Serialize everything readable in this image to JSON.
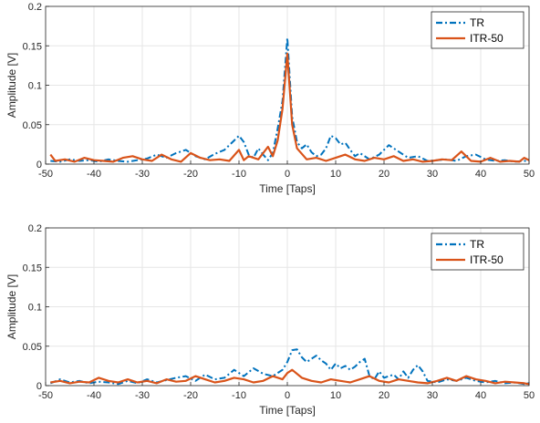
{
  "chart_data": [
    {
      "type": "line",
      "xlabel": "Time [Taps]",
      "ylabel": "Amplitude [V]",
      "xlim": [
        -50,
        50
      ],
      "ylim": [
        0,
        0.2
      ],
      "xticks": [
        "-50",
        "-40",
        "-30",
        "-20",
        "-10",
        "0",
        "10",
        "20",
        "30",
        "40",
        "50"
      ],
      "yticks": [
        "0",
        "0.05",
        "0.1",
        "0.15",
        "0.2"
      ],
      "grid": true,
      "legend_position": "top-right",
      "series": [
        {
          "name": "TR",
          "color": "#0072BD",
          "style": "dash-dot",
          "x": [
            -49,
            -47,
            -45,
            -43,
            -41,
            -39,
            -37,
            -35,
            -33,
            -31,
            -29,
            -27,
            -25,
            -23,
            -21,
            -19,
            -17,
            -15,
            -13,
            -12,
            -11,
            -10,
            -9,
            -8,
            -7,
            -6,
            -5,
            -4,
            -3,
            -2,
            -1,
            0,
            1,
            2,
            3,
            4,
            5,
            6,
            7,
            8,
            9,
            10,
            11,
            12,
            13,
            14,
            15,
            17,
            19,
            21,
            23,
            25,
            27,
            29,
            31,
            33,
            35,
            37,
            39,
            41,
            43,
            45,
            47,
            49,
            50
          ],
          "y": [
            0.004,
            0.003,
            0.006,
            0.004,
            0.005,
            0.003,
            0.006,
            0.004,
            0.003,
            0.005,
            0.007,
            0.012,
            0.008,
            0.014,
            0.018,
            0.01,
            0.006,
            0.013,
            0.018,
            0.024,
            0.03,
            0.036,
            0.028,
            0.012,
            0.008,
            0.02,
            0.012,
            0.005,
            0.014,
            0.045,
            0.08,
            0.16,
            0.06,
            0.028,
            0.02,
            0.025,
            0.015,
            0.01,
            0.012,
            0.02,
            0.036,
            0.033,
            0.025,
            0.027,
            0.018,
            0.01,
            0.014,
            0.006,
            0.012,
            0.024,
            0.016,
            0.008,
            0.01,
            0.004,
            0.005,
            0.006,
            0.004,
            0.01,
            0.012,
            0.006,
            0.004,
            0.005,
            0.003,
            0.004,
            0.004
          ]
        },
        {
          "name": "ITR-50",
          "color": "#D95319",
          "style": "solid",
          "x": [
            -49,
            -48,
            -46,
            -44,
            -42,
            -40,
            -38,
            -36,
            -34,
            -32,
            -30,
            -28,
            -26,
            -24,
            -22,
            -20,
            -18,
            -16,
            -14,
            -12,
            -10,
            -9,
            -8,
            -6,
            -4,
            -3,
            -2,
            -1,
            0,
            1,
            2,
            4,
            6,
            8,
            10,
            12,
            14,
            16,
            18,
            20,
            22,
            24,
            26,
            28,
            30,
            32,
            34,
            36,
            38,
            40,
            42,
            44,
            46,
            48,
            49,
            50
          ],
          "y": [
            0.012,
            0.004,
            0.006,
            0.003,
            0.008,
            0.005,
            0.004,
            0.003,
            0.008,
            0.01,
            0.006,
            0.004,
            0.012,
            0.006,
            0.003,
            0.014,
            0.008,
            0.005,
            0.006,
            0.004,
            0.018,
            0.005,
            0.01,
            0.006,
            0.022,
            0.01,
            0.03,
            0.07,
            0.14,
            0.05,
            0.02,
            0.006,
            0.008,
            0.004,
            0.008,
            0.012,
            0.006,
            0.004,
            0.008,
            0.006,
            0.01,
            0.004,
            0.006,
            0.003,
            0.004,
            0.006,
            0.005,
            0.016,
            0.004,
            0.003,
            0.008,
            0.003,
            0.004,
            0.003,
            0.008,
            0.005
          ]
        }
      ]
    },
    {
      "type": "line",
      "xlabel": "Time [Taps]",
      "ylabel": "Amplitude [V]",
      "xlim": [
        -50,
        50
      ],
      "ylim": [
        0,
        0.2
      ],
      "xticks": [
        "-50",
        "-40",
        "-30",
        "-20",
        "-10",
        "0",
        "10",
        "20",
        "30",
        "40",
        "50"
      ],
      "yticks": [
        "0",
        "0.05",
        "0.1",
        "0.15",
        "0.2"
      ],
      "grid": true,
      "legend_position": "top-right",
      "series": [
        {
          "name": "TR",
          "color": "#0072BD",
          "style": "dash-dot",
          "x": [
            -49,
            -47,
            -45,
            -43,
            -41,
            -39,
            -37,
            -35,
            -33,
            -31,
            -29,
            -27,
            -25,
            -23,
            -21,
            -19,
            -17,
            -15,
            -13,
            -11,
            -9,
            -7,
            -5,
            -3,
            -1,
            0,
            1,
            2,
            3,
            4,
            5,
            6,
            7,
            8,
            9,
            10,
            11,
            12,
            13,
            14,
            15,
            16,
            17,
            18,
            19,
            20,
            21,
            22,
            23,
            24,
            25,
            26,
            27,
            28,
            29,
            31,
            33,
            35,
            37,
            39,
            41,
            43,
            45,
            47,
            49,
            50
          ],
          "y": [
            0.003,
            0.008,
            0.004,
            0.006,
            0.003,
            0.005,
            0.004,
            0.002,
            0.006,
            0.003,
            0.008,
            0.004,
            0.007,
            0.01,
            0.012,
            0.006,
            0.014,
            0.008,
            0.01,
            0.02,
            0.012,
            0.022,
            0.015,
            0.012,
            0.02,
            0.03,
            0.045,
            0.046,
            0.036,
            0.03,
            0.034,
            0.038,
            0.032,
            0.028,
            0.02,
            0.028,
            0.022,
            0.025,
            0.02,
            0.024,
            0.03,
            0.034,
            0.012,
            0.008,
            0.018,
            0.01,
            0.012,
            0.014,
            0.008,
            0.018,
            0.01,
            0.02,
            0.026,
            0.018,
            0.006,
            0.004,
            0.008,
            0.006,
            0.01,
            0.006,
            0.004,
            0.006,
            0.003,
            0.004,
            0.002,
            0.003
          ]
        },
        {
          "name": "ITR-50",
          "color": "#D95319",
          "style": "solid",
          "x": [
            -49,
            -47,
            -45,
            -43,
            -41,
            -39,
            -37,
            -35,
            -33,
            -31,
            -29,
            -27,
            -25,
            -23,
            -21,
            -19,
            -17,
            -15,
            -13,
            -11,
            -9,
            -7,
            -5,
            -3,
            -1,
            0,
            1,
            3,
            5,
            7,
            9,
            11,
            13,
            15,
            17,
            19,
            21,
            23,
            25,
            27,
            29,
            31,
            33,
            35,
            37,
            39,
            41,
            43,
            45,
            47,
            49,
            50
          ],
          "y": [
            0.004,
            0.006,
            0.003,
            0.005,
            0.004,
            0.01,
            0.006,
            0.004,
            0.008,
            0.004,
            0.006,
            0.003,
            0.008,
            0.005,
            0.006,
            0.012,
            0.008,
            0.004,
            0.006,
            0.01,
            0.008,
            0.004,
            0.006,
            0.012,
            0.008,
            0.016,
            0.02,
            0.01,
            0.006,
            0.004,
            0.008,
            0.006,
            0.004,
            0.008,
            0.012,
            0.006,
            0.004,
            0.008,
            0.006,
            0.004,
            0.003,
            0.006,
            0.01,
            0.006,
            0.012,
            0.008,
            0.006,
            0.003,
            0.005,
            0.004,
            0.003,
            0.002
          ]
        }
      ]
    }
  ]
}
